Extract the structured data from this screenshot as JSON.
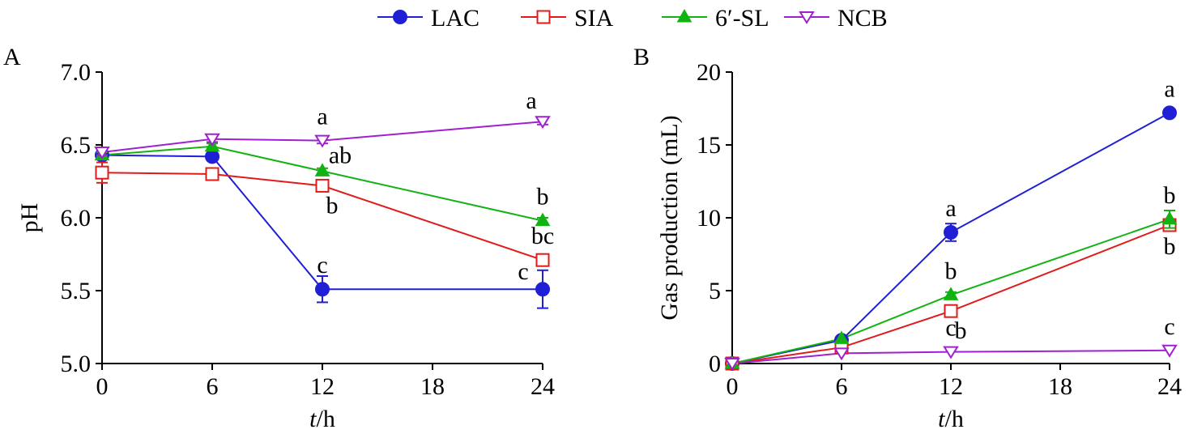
{
  "legend": [
    {
      "name": "LAC",
      "color": "#1f1fd6",
      "marker": "circle-filled"
    },
    {
      "name": "SIA",
      "color": "#e01b1b",
      "marker": "square-open"
    },
    {
      "name": "6′-SL",
      "color": "#12b212",
      "marker": "triangle-up-filled"
    },
    {
      "name": "NCB",
      "color": "#a020d0",
      "marker": "triangle-down-open"
    }
  ],
  "chart_data": [
    {
      "panel": "A",
      "type": "line",
      "xlabel": "t/h",
      "ylabel": "pH",
      "x": [
        0,
        6,
        12,
        24
      ],
      "xticks": [
        0,
        6,
        12,
        18,
        24
      ],
      "xlim": [
        0,
        24
      ],
      "ylim": [
        5.0,
        7.0
      ],
      "yticks": [
        "5.0",
        "5.5",
        "6.0",
        "6.5",
        "7.0"
      ],
      "grid": false,
      "series": [
        {
          "name": "LAC",
          "values": [
            6.43,
            6.42,
            5.51,
            5.51
          ],
          "err": [
            0.03,
            0.02,
            0.09,
            0.13
          ]
        },
        {
          "name": "SIA",
          "values": [
            6.31,
            6.3,
            6.22,
            5.71
          ],
          "err": [
            0.07,
            0.02,
            0.02,
            0.02
          ]
        },
        {
          "name": "6′-SL",
          "values": [
            6.43,
            6.49,
            6.32,
            5.98
          ],
          "err": [
            0.02,
            0.02,
            0.02,
            0.02
          ]
        },
        {
          "name": "NCB",
          "values": [
            6.45,
            6.54,
            6.53,
            6.66
          ],
          "err": [
            0.02,
            0.02,
            0.02,
            0.02
          ]
        }
      ],
      "annotations": [
        {
          "text": "a",
          "series": "NCB",
          "x": 12,
          "pos": "above"
        },
        {
          "text": "ab",
          "series": "6′-SL",
          "x": 12,
          "pos": "above-right"
        },
        {
          "text": "b",
          "series": "SIA",
          "x": 12,
          "pos": "below-right"
        },
        {
          "text": "c",
          "series": "LAC",
          "x": 12,
          "pos": "above"
        },
        {
          "text": "a",
          "series": "NCB",
          "x": 24,
          "pos": "above-left"
        },
        {
          "text": "b",
          "series": "6′-SL",
          "x": 24,
          "pos": "above"
        },
        {
          "text": "bc",
          "series": "SIA",
          "x": 24,
          "pos": "above"
        },
        {
          "text": "c",
          "series": "LAC",
          "x": 24,
          "pos": "left"
        }
      ]
    },
    {
      "panel": "B",
      "type": "line",
      "xlabel": "t/h",
      "ylabel": "Gas production (mL)",
      "x": [
        0,
        6,
        12,
        24
      ],
      "xticks": [
        0,
        6,
        12,
        18,
        24
      ],
      "xlim": [
        0,
        24
      ],
      "ylim": [
        0,
        20
      ],
      "yticks": [
        "0",
        "5",
        "10",
        "15",
        "20"
      ],
      "grid": false,
      "series": [
        {
          "name": "LAC",
          "values": [
            0.0,
            1.6,
            9.0,
            17.2
          ],
          "err": [
            0.1,
            0.1,
            0.6,
            0.2
          ]
        },
        {
          "name": "SIA",
          "values": [
            0.0,
            1.1,
            3.6,
            9.5
          ],
          "err": [
            0.1,
            0.1,
            0.2,
            0.2
          ]
        },
        {
          "name": "6′-SL",
          "values": [
            0.0,
            1.7,
            4.7,
            9.9
          ],
          "err": [
            0.1,
            0.1,
            0.2,
            0.6
          ]
        },
        {
          "name": "NCB",
          "values": [
            0.0,
            0.7,
            0.8,
            0.9
          ],
          "err": [
            0.05,
            0.05,
            0.05,
            0.05
          ]
        }
      ],
      "annotations": [
        {
          "text": "a",
          "series": "LAC",
          "x": 12,
          "pos": "above"
        },
        {
          "text": "b",
          "series": "6′-SL",
          "x": 12,
          "pos": "above"
        },
        {
          "text": "b",
          "series": "SIA",
          "x": 12,
          "pos": "below-right"
        },
        {
          "text": "c",
          "series": "NCB",
          "x": 12,
          "pos": "above"
        },
        {
          "text": "a",
          "series": "LAC",
          "x": 24,
          "pos": "above"
        },
        {
          "text": "b",
          "series": "6′-SL",
          "x": 24,
          "pos": "above"
        },
        {
          "text": "b",
          "series": "SIA",
          "x": 24,
          "pos": "below"
        },
        {
          "text": "c",
          "series": "NCB",
          "x": 24,
          "pos": "above"
        }
      ]
    }
  ]
}
